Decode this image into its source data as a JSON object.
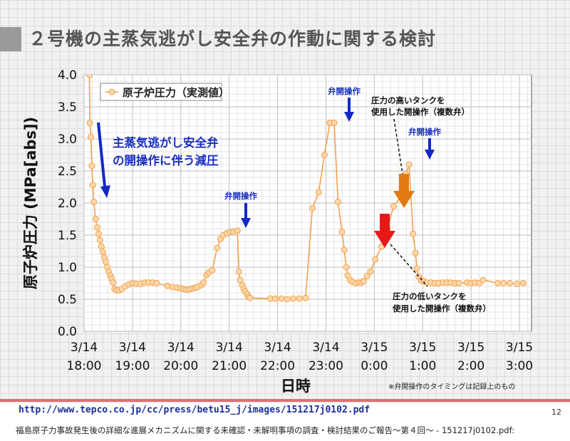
{
  "title": "２号機の主蒸気逃がし安全弁の作動に関する検討",
  "url": "http://www.tepco.co.jp/cc/press/betu15_j/images/151217j0102.pdf",
  "page_number": "12",
  "footer": "福島原子力事故発生後の詳細な進展メカニズムに関する未確認・未解明事項の調査・検討結果のご報告～第４回～ - 151217j0102.pdf:",
  "colors": {
    "series": "#f0a050",
    "marker_fill": "#fdd8a8",
    "annotation_blue": "#1a2fc0",
    "arrow_blue": "#1428c8",
    "arrow_red": "#e81818",
    "arrow_orange": "#e27a12"
  },
  "chart_data": {
    "type": "line",
    "xlabel": "日時",
    "ylabel": "原子炉圧力 (MPa[abs])",
    "ylim": [
      0.0,
      4.0
    ],
    "yticks": [
      "0.0",
      "0.5",
      "1.0",
      "1.5",
      "2.0",
      "2.5",
      "3.0",
      "3.5",
      "4.0"
    ],
    "xlim_hours": [
      18.0,
      27.25
    ],
    "xticks": [
      {
        "t": 18.0,
        "date": "3/14",
        "time": "18:00"
      },
      {
        "t": 19.0,
        "date": "3/14",
        "time": "19:00"
      },
      {
        "t": 20.0,
        "date": "3/14",
        "time": "20:00"
      },
      {
        "t": 21.0,
        "date": "3/14",
        "time": "21:00"
      },
      {
        "t": 22.0,
        "date": "3/14",
        "time": "22:00"
      },
      {
        "t": 23.0,
        "date": "3/14",
        "time": "23:00"
      },
      {
        "t": 24.0,
        "date": "3/15",
        "time": "0:00"
      },
      {
        "t": 25.0,
        "date": "3/15",
        "time": "1:00"
      },
      {
        "t": 26.0,
        "date": "3/15",
        "time": "2:00"
      },
      {
        "t": 27.0,
        "date": "3/15",
        "time": "3:00"
      }
    ],
    "legend": {
      "label": "原子炉圧力（実測値）",
      "position": "top-left"
    },
    "series": [
      {
        "name": "原子炉圧力（実測値）",
        "points": [
          [
            18.11,
            4.0
          ],
          [
            18.12,
            3.25
          ],
          [
            18.14,
            3.03
          ],
          [
            18.16,
            2.58
          ],
          [
            18.18,
            2.28
          ],
          [
            18.2,
            2.02
          ],
          [
            18.24,
            1.75
          ],
          [
            18.27,
            1.62
          ],
          [
            18.3,
            1.52
          ],
          [
            18.33,
            1.42
          ],
          [
            18.36,
            1.32
          ],
          [
            18.39,
            1.24
          ],
          [
            18.42,
            1.15
          ],
          [
            18.45,
            1.08
          ],
          [
            18.48,
            1.0
          ],
          [
            18.51,
            0.93
          ],
          [
            18.54,
            0.87
          ],
          [
            18.57,
            0.82
          ],
          [
            18.6,
            0.76
          ],
          [
            18.63,
            0.66
          ],
          [
            18.67,
            0.64
          ],
          [
            18.72,
            0.64
          ],
          [
            18.78,
            0.66
          ],
          [
            18.85,
            0.7
          ],
          [
            18.93,
            0.73
          ],
          [
            19.0,
            0.75
          ],
          [
            19.08,
            0.74
          ],
          [
            19.17,
            0.74
          ],
          [
            19.25,
            0.76
          ],
          [
            19.33,
            0.76
          ],
          [
            19.42,
            0.76
          ],
          [
            19.5,
            0.75
          ],
          [
            19.72,
            0.71
          ],
          [
            19.83,
            0.69
          ],
          [
            19.92,
            0.68
          ],
          [
            20.0,
            0.67
          ],
          [
            20.05,
            0.66
          ],
          [
            20.1,
            0.65
          ],
          [
            20.15,
            0.65
          ],
          [
            20.2,
            0.66
          ],
          [
            20.25,
            0.67
          ],
          [
            20.3,
            0.68
          ],
          [
            20.35,
            0.69
          ],
          [
            20.42,
            0.72
          ],
          [
            20.47,
            0.76
          ],
          [
            20.53,
            0.88
          ],
          [
            20.58,
            0.92
          ],
          [
            20.65,
            0.95
          ],
          [
            20.75,
            1.3
          ],
          [
            20.82,
            1.44
          ],
          [
            20.88,
            1.5
          ],
          [
            20.95,
            1.53
          ],
          [
            21.02,
            1.55
          ],
          [
            21.08,
            1.55
          ],
          [
            21.17,
            1.57
          ],
          [
            21.2,
            0.93
          ],
          [
            21.23,
            0.8
          ],
          [
            21.27,
            0.72
          ],
          [
            21.3,
            0.66
          ],
          [
            21.33,
            0.62
          ],
          [
            21.37,
            0.58
          ],
          [
            21.4,
            0.54
          ],
          [
            21.43,
            0.52
          ],
          [
            21.85,
            0.51
          ],
          [
            21.95,
            0.51
          ],
          [
            22.08,
            0.51
          ],
          [
            22.2,
            0.5
          ],
          [
            22.32,
            0.51
          ],
          [
            22.45,
            0.51
          ],
          [
            22.58,
            0.52
          ],
          [
            22.72,
            1.92
          ],
          [
            22.85,
            2.17
          ],
          [
            22.97,
            2.75
          ],
          [
            23.08,
            3.25
          ],
          [
            23.17,
            3.25
          ],
          [
            23.25,
            2.02
          ],
          [
            23.33,
            1.55
          ],
          [
            23.38,
            1.27
          ],
          [
            23.42,
            1.0
          ],
          [
            23.45,
            0.87
          ],
          [
            23.5,
            0.8
          ],
          [
            23.55,
            0.77
          ],
          [
            23.62,
            0.75
          ],
          [
            23.68,
            0.76
          ],
          [
            23.73,
            0.76
          ],
          [
            23.78,
            0.78
          ],
          [
            23.85,
            0.86
          ],
          [
            23.92,
            0.93
          ],
          [
            24.02,
            1.12
          ],
          [
            24.15,
            1.32
          ],
          [
            24.27,
            1.6
          ],
          [
            24.4,
            1.95
          ],
          [
            24.55,
            2.1
          ],
          [
            24.65,
            2.45
          ],
          [
            24.72,
            2.6
          ],
          [
            24.8,
            1.52
          ],
          [
            24.85,
            1.22
          ],
          [
            24.88,
            0.98
          ],
          [
            24.92,
            0.85
          ],
          [
            24.97,
            0.79
          ],
          [
            25.03,
            0.78
          ],
          [
            25.08,
            0.76
          ],
          [
            25.17,
            0.76
          ],
          [
            25.25,
            0.75
          ],
          [
            25.33,
            0.75
          ],
          [
            25.42,
            0.76
          ],
          [
            25.5,
            0.76
          ],
          [
            25.58,
            0.76
          ],
          [
            25.67,
            0.75
          ],
          [
            25.75,
            0.75
          ],
          [
            25.92,
            0.76
          ],
          [
            26.0,
            0.75
          ],
          [
            26.08,
            0.76
          ],
          [
            26.17,
            0.75
          ],
          [
            26.25,
            0.8
          ],
          [
            26.55,
            0.75
          ],
          [
            26.67,
            0.75
          ],
          [
            26.8,
            0.75
          ],
          [
            26.95,
            0.74
          ],
          [
            27.08,
            0.75
          ]
        ]
      }
    ],
    "annotations": {
      "depressurize_text_1": "主蒸気逃がし安全弁",
      "depressurize_text_2": "の開操作に伴う減圧",
      "valve_op_1": "弁開操作",
      "valve_op_2": "弁開操作",
      "valve_op_3": "弁開操作",
      "high_tank_1": "圧力の高いタンクを",
      "high_tank_2": "使用した開操作（複数弁）",
      "low_tank_1": "圧力の低いタンクを",
      "low_tank_2": "使用した開操作（複数弁）",
      "note": "※弁開操作のタイミングは記録上のもの"
    }
  }
}
